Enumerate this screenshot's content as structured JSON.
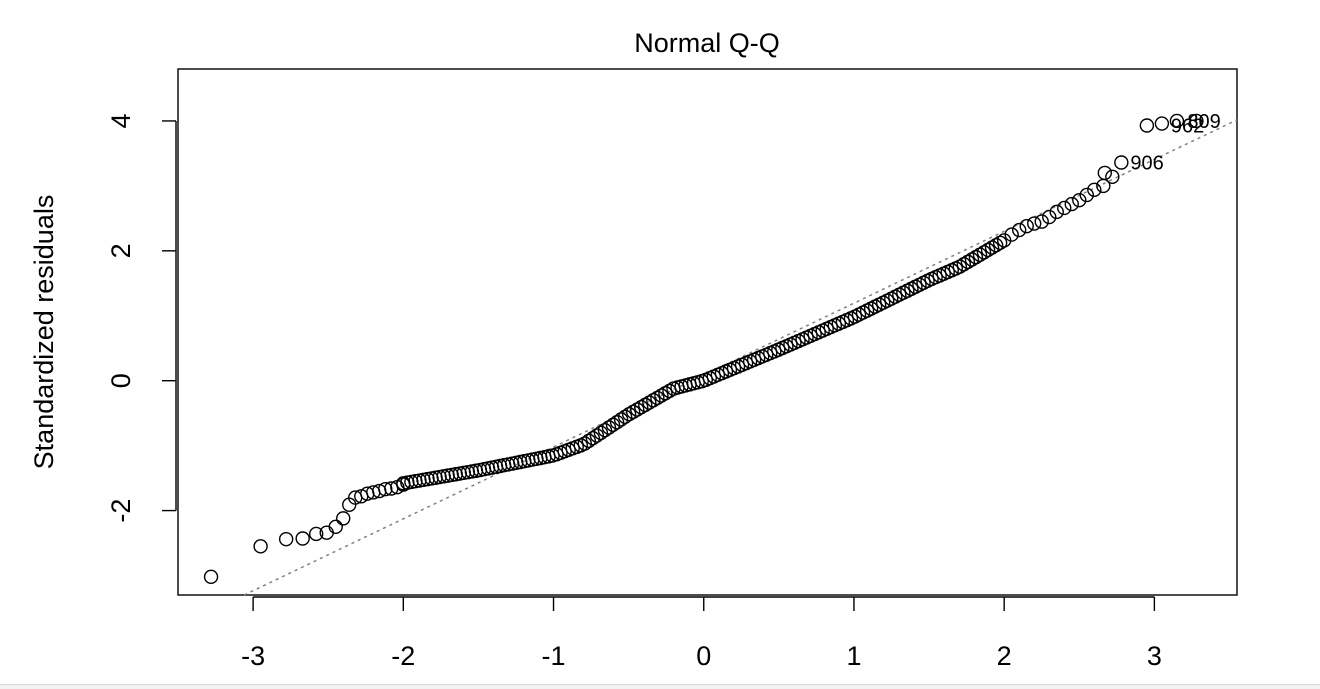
{
  "chart_data": {
    "type": "scatter",
    "title": "Normal Q-Q",
    "xlabel": "",
    "ylabel": "Standardized residuals",
    "xlim": [
      -3.5,
      3.55
    ],
    "ylim": [
      -3.3,
      4.8
    ],
    "x_ticks": [
      -3,
      -2,
      -1,
      0,
      1,
      2,
      3
    ],
    "x_tick_labels": [
      "-3",
      "-2",
      "-1",
      "0",
      "1",
      "2",
      "3"
    ],
    "y_ticks": [
      -2,
      0,
      2,
      4
    ],
    "y_tick_labels": [
      "-2",
      "0",
      "2",
      "4"
    ],
    "grid": false,
    "legend": "none",
    "reference_line": {
      "intercept": 0.087,
      "slope": 1.107,
      "style": "dotted",
      "color": "#808080"
    },
    "point_style": {
      "shape": "open-circle",
      "color": "#000000"
    },
    "point_labels": [
      {
        "text": "809",
        "x": 3.16,
        "y": 4.0
      },
      {
        "text": "962",
        "x": 3.05,
        "y": 3.93
      },
      {
        "text": "906",
        "x": 2.78,
        "y": 3.36
      }
    ],
    "outlier_points": [
      {
        "x": -3.28,
        "y": -3.02
      },
      {
        "x": -2.95,
        "y": -2.55
      },
      {
        "x": -2.78,
        "y": -2.44
      },
      {
        "x": -2.67,
        "y": -2.43
      },
      {
        "x": -2.58,
        "y": -2.36
      },
      {
        "x": -2.51,
        "y": -2.34
      },
      {
        "x": -2.45,
        "y": -2.25
      },
      {
        "x": -2.4,
        "y": -2.12
      },
      {
        "x": -2.36,
        "y": -1.91
      },
      {
        "x": -2.32,
        "y": -1.8
      },
      {
        "x": -2.28,
        "y": -1.78
      },
      {
        "x": -2.24,
        "y": -1.74
      },
      {
        "x": -2.2,
        "y": -1.72
      },
      {
        "x": -2.16,
        "y": -1.7
      },
      {
        "x": -2.12,
        "y": -1.67
      },
      {
        "x": -2.08,
        "y": -1.66
      },
      {
        "x": -2.04,
        "y": -1.64
      },
      {
        "x": -2.0,
        "y": -1.6
      },
      {
        "x": 2.05,
        "y": 2.25
      },
      {
        "x": 2.1,
        "y": 2.32
      },
      {
        "x": 2.15,
        "y": 2.38
      },
      {
        "x": 2.2,
        "y": 2.42
      },
      {
        "x": 2.25,
        "y": 2.45
      },
      {
        "x": 2.3,
        "y": 2.52
      },
      {
        "x": 2.35,
        "y": 2.6
      },
      {
        "x": 2.4,
        "y": 2.66
      },
      {
        "x": 2.45,
        "y": 2.72
      },
      {
        "x": 2.5,
        "y": 2.78
      },
      {
        "x": 2.55,
        "y": 2.86
      },
      {
        "x": 2.6,
        "y": 2.94
      },
      {
        "x": 2.66,
        "y": 3.0
      },
      {
        "x": 2.72,
        "y": 3.14
      },
      {
        "x": 2.67,
        "y": 3.2
      },
      {
        "x": 2.78,
        "y": 3.36
      },
      {
        "x": 2.95,
        "y": 3.93
      },
      {
        "x": 3.05,
        "y": 3.96
      },
      {
        "x": 3.15,
        "y": 4.0
      },
      {
        "x": 3.28,
        "y": 4.0
      }
    ],
    "curve_knots": [
      {
        "x": -2.0,
        "y": -1.58
      },
      {
        "x": -1.5,
        "y": -1.38
      },
      {
        "x": -1.0,
        "y": -1.15
      },
      {
        "x": -0.8,
        "y": -0.98
      },
      {
        "x": -0.5,
        "y": -0.52
      },
      {
        "x": -0.2,
        "y": -0.12
      },
      {
        "x": 0.0,
        "y": 0.0
      },
      {
        "x": 0.5,
        "y": 0.48
      },
      {
        "x": 1.0,
        "y": 0.98
      },
      {
        "x": 1.5,
        "y": 1.55
      },
      {
        "x": 1.7,
        "y": 1.75
      },
      {
        "x": 2.0,
        "y": 2.16
      }
    ],
    "curve_point_count": 150
  }
}
